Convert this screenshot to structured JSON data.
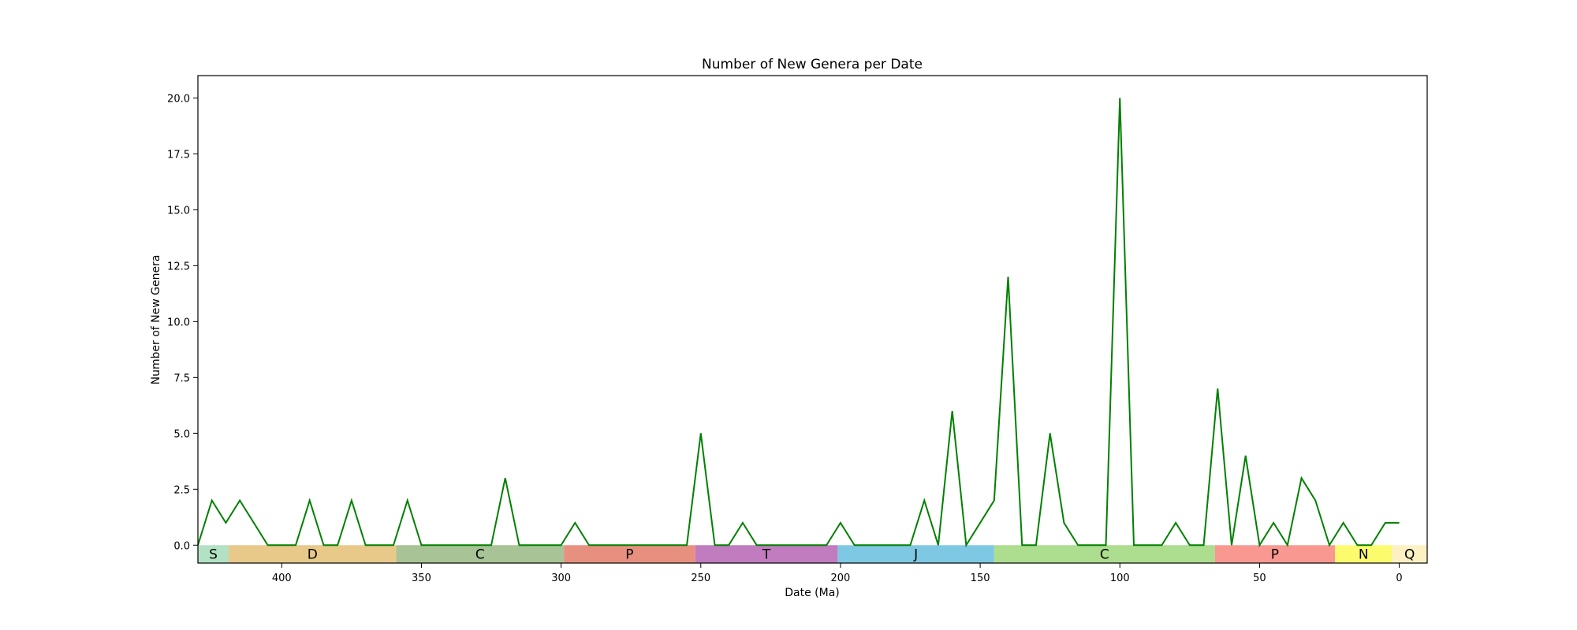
{
  "chart_data": {
    "type": "line",
    "title": "Number of New Genera per Date",
    "xlabel": "Date (Ma)",
    "ylabel": "Number of New Genera",
    "xlim": [
      430,
      -10
    ],
    "ylim": [
      -0.8,
      21
    ],
    "x_ticks": [
      400,
      350,
      300,
      250,
      200,
      150,
      100,
      50,
      0
    ],
    "y_ticks": [
      0.0,
      2.5,
      5.0,
      7.5,
      10.0,
      12.5,
      15.0,
      17.5,
      20.0
    ],
    "grid": false,
    "line_color": "#008000",
    "series": [
      {
        "x": [
          430,
          425,
          420,
          415,
          405,
          400,
          395,
          390,
          385,
          380,
          375,
          370,
          365,
          360,
          355,
          350,
          345,
          340,
          335,
          330,
          325,
          320,
          315,
          310,
          305,
          300,
          295,
          290,
          285,
          280,
          275,
          270,
          265,
          260,
          255,
          250,
          245,
          240,
          235,
          230,
          225,
          220,
          215,
          210,
          205,
          200,
          195,
          190,
          185,
          180,
          175,
          170,
          165,
          160,
          155,
          145,
          140,
          135,
          130,
          125,
          120,
          115,
          110,
          105,
          100,
          95,
          90,
          85,
          80,
          75,
          70,
          65,
          60,
          55,
          50,
          45,
          40,
          35,
          30,
          25,
          20,
          15,
          10,
          5,
          0
        ],
        "y": [
          0,
          2,
          1,
          2,
          0,
          0,
          0,
          2,
          0,
          0,
          2,
          0,
          0,
          0,
          2,
          0,
          0,
          0,
          0,
          0,
          0,
          3,
          0,
          0,
          0,
          0,
          1,
          0,
          0,
          0,
          0,
          0,
          0,
          0,
          0,
          5,
          0,
          0,
          1,
          0,
          0,
          0,
          0,
          0,
          0,
          1,
          0,
          0,
          0,
          0,
          0,
          2,
          0,
          6,
          0,
          2,
          12,
          0,
          0,
          5,
          1,
          0,
          0,
          0,
          20,
          0,
          0,
          0,
          1,
          0,
          0,
          7,
          0,
          4,
          0,
          1,
          0,
          3,
          2,
          0,
          1,
          0,
          0,
          1,
          1
        ]
      }
    ],
    "periods": [
      {
        "label": "S",
        "start": 430,
        "end": 419,
        "color": "#b3e1c4"
      },
      {
        "label": "D",
        "start": 419,
        "end": 359,
        "color": "#e8c98a"
      },
      {
        "label": "C",
        "start": 359,
        "end": 299,
        "color": "#a8c395"
      },
      {
        "label": "P",
        "start": 299,
        "end": 252,
        "color": "#e8907f"
      },
      {
        "label": "T",
        "start": 252,
        "end": 201,
        "color": "#c07cbe"
      },
      {
        "label": "J",
        "start": 201,
        "end": 145,
        "color": "#7ec8e3"
      },
      {
        "label": "C",
        "start": 145,
        "end": 66,
        "color": "#addd8e"
      },
      {
        "label": "P",
        "start": 66,
        "end": 23,
        "color": "#f99890"
      },
      {
        "label": "N",
        "start": 23,
        "end": 2.6,
        "color": "#fcfb6e"
      },
      {
        "label": "Q",
        "start": 2.6,
        "end": -10,
        "color": "#fdf1c3"
      }
    ]
  }
}
